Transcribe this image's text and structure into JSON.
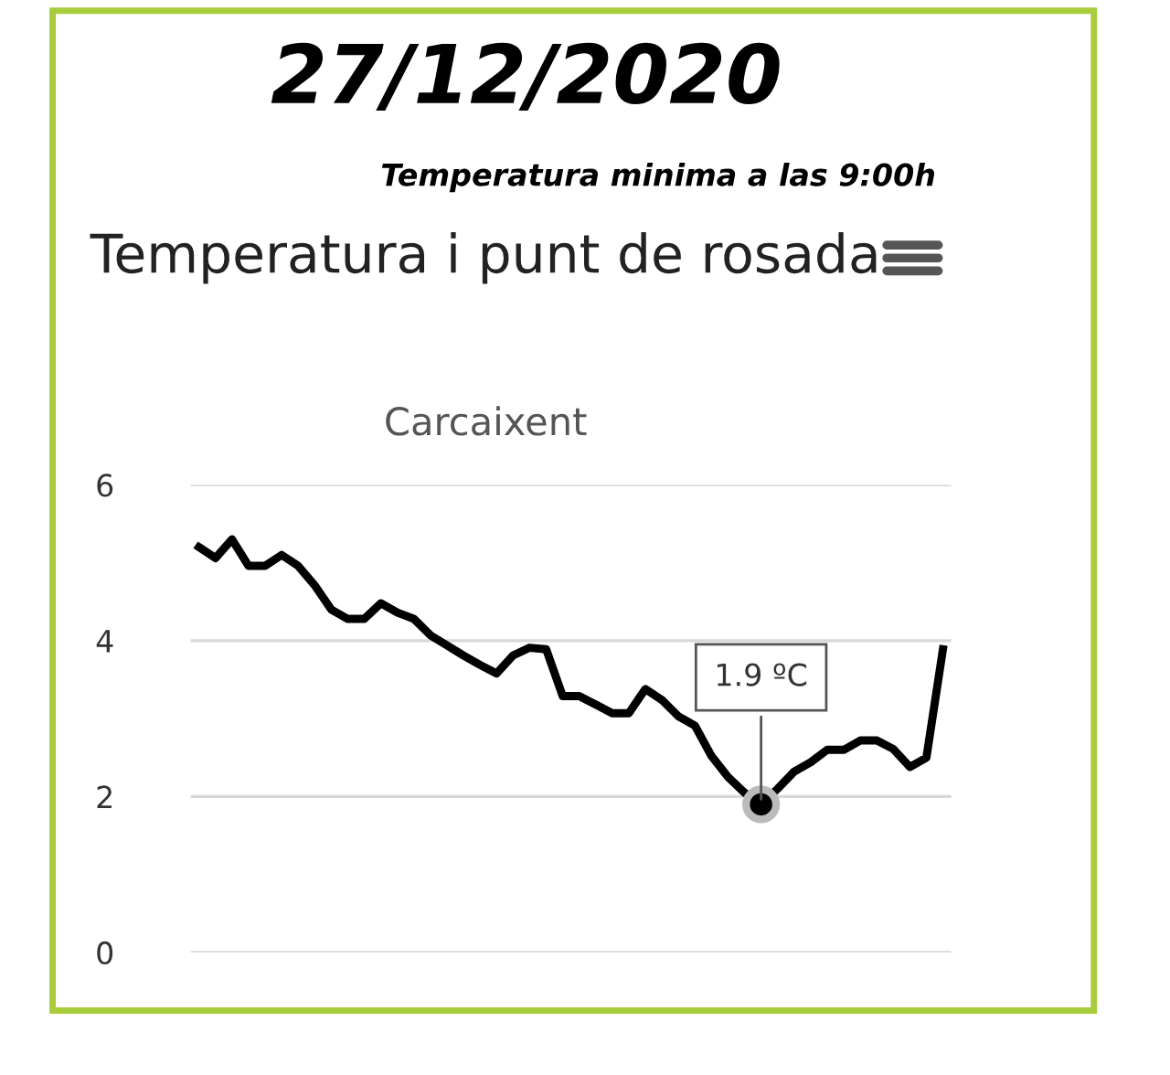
{
  "chart_data": {
    "type": "line",
    "title": "Temperatura i punt de rosada",
    "subtitle": "Carcaixent",
    "annotations": [
      "27/12/2020",
      "Temperatura minima a las 9:00h",
      {
        "text": "1.9 ºC",
        "y": 1.9
      }
    ],
    "categories": [
      null,
      null,
      null,
      null,
      null,
      null,
      null,
      null,
      null,
      null,
      null,
      null,
      null,
      null,
      null,
      null,
      null,
      null,
      null,
      null,
      null,
      null,
      null,
      null,
      null,
      null,
      null,
      null,
      null,
      null,
      null,
      null,
      null,
      null,
      null,
      null,
      null,
      null,
      null,
      null,
      null,
      null,
      null,
      null,
      null,
      null
    ],
    "series": [
      {
        "color": "#000000",
        "values": [
          5.2,
          5.06,
          5.3,
          4.96,
          4.96,
          5.1,
          4.96,
          4.71,
          4.4,
          4.28,
          4.28,
          4.48,
          4.36,
          4.28,
          4.07,
          3.94,
          3.81,
          3.69,
          3.58,
          3.81,
          3.91,
          3.89,
          3.29,
          3.29,
          3.18,
          3.07,
          3.07,
          3.38,
          3.24,
          3.03,
          2.91,
          2.52,
          2.25,
          2.05,
          1.9,
          2.1,
          2.32,
          2.44,
          2.6,
          2.6,
          2.72,
          2.72,
          2.61,
          2.38,
          2.5,
          3.89
        ]
      }
    ],
    "ylim": [
      0,
      6
    ],
    "yticks": [
      0,
      2,
      4,
      6
    ],
    "grid": "y",
    "tick_labels": "y",
    "marker": "none",
    "line_style": "solid"
  }
}
